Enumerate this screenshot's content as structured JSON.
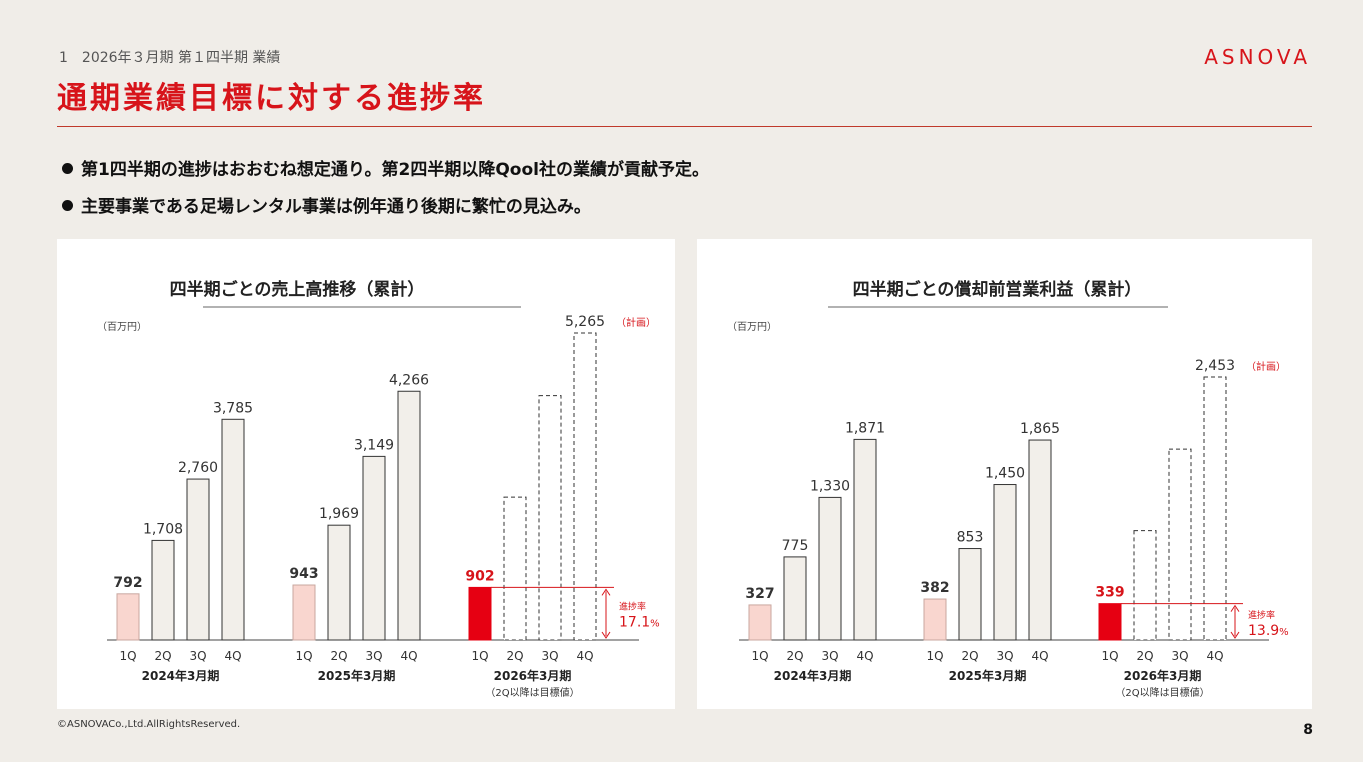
{
  "header": {
    "section": "1　2026年３月期 第１四半期 業績",
    "title": "通期業績目標に対する進捗率",
    "logo": "ASNOVA"
  },
  "bullets": [
    "第1四半期の進捗はおおむね想定通り。第2四半期以降Qool社の業績が貢献予定。",
    "主要事業である足場レンタル事業は例年通り後期に繁忙の見込み。"
  ],
  "colors": {
    "accent": "#d7141a",
    "bar_fill": "#f2efea",
    "bar_first": "#f9d6cf",
    "bar_current": "#e60012"
  },
  "chart_data": [
    {
      "type": "bar",
      "title": "四半期ごとの売上高推移（累計）",
      "unit_label": "（百万円）",
      "categories": [
        "1Q",
        "2Q",
        "3Q",
        "4Q"
      ],
      "groups": [
        {
          "name": "2024年3月期",
          "note": "",
          "values": [
            792,
            1708,
            2760,
            3785
          ],
          "labels": [
            "792",
            "1,708",
            "2,760",
            "3,785"
          ],
          "planned": [
            false,
            false,
            false,
            false
          ]
        },
        {
          "name": "2025年3月期",
          "note": "",
          "values": [
            943,
            1969,
            3149,
            4266
          ],
          "labels": [
            "943",
            "1,969",
            "3,149",
            "4,266"
          ],
          "planned": [
            false,
            false,
            false,
            false
          ]
        },
        {
          "name": "2026年3月期",
          "note": "（2Q以降は目標値）",
          "values": [
            902,
            2450,
            4190,
            5265
          ],
          "labels": [
            "902",
            "",
            "",
            "5,265"
          ],
          "planned": [
            false,
            true,
            true,
            true
          ]
        }
      ],
      "plan_label": "（計画）",
      "progress_label": "進捗率",
      "progress_value": "17.1",
      "progress_unit": "%",
      "ylim": [
        0,
        5265
      ]
    },
    {
      "type": "bar",
      "title": "四半期ごとの償却前営業利益（累計）",
      "unit_label": "（百万円）",
      "categories": [
        "1Q",
        "2Q",
        "3Q",
        "4Q"
      ],
      "groups": [
        {
          "name": "2024年3月期",
          "note": "",
          "values": [
            327,
            775,
            1330,
            1871
          ],
          "labels": [
            "327",
            "775",
            "1,330",
            "1,871"
          ],
          "planned": [
            false,
            false,
            false,
            false
          ]
        },
        {
          "name": "2025年3月期",
          "note": "",
          "values": [
            382,
            853,
            1450,
            1865
          ],
          "labels": [
            "382",
            "853",
            "1,450",
            "1,865"
          ],
          "planned": [
            false,
            false,
            false,
            false
          ]
        },
        {
          "name": "2026年3月期",
          "note": "（2Q以降は目標値）",
          "values": [
            339,
            1020,
            1780,
            2453
          ],
          "labels": [
            "339",
            "",
            "",
            "2,453"
          ],
          "planned": [
            false,
            true,
            true,
            true
          ]
        }
      ],
      "plan_label": "（計画）",
      "progress_label": "進捗率",
      "progress_value": "13.9",
      "progress_unit": "%",
      "ylim": [
        0,
        2453
      ]
    }
  ],
  "footer": {
    "copyright": "©ASNOVACo.,Ltd.AllRightsReserved.",
    "page": "8"
  }
}
